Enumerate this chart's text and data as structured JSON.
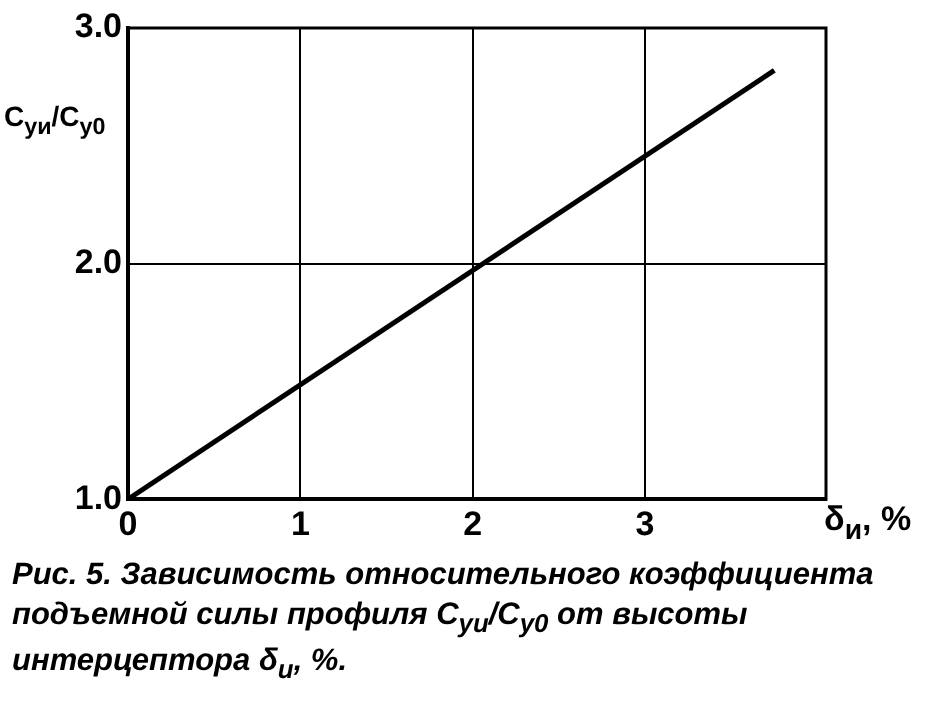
{
  "chart_data": {
    "type": "line",
    "ylabel": "C$_{yи}$/C$_{y0}$",
    "xlabel": "δ$_{и}$, %",
    "x": [
      0,
      3.75
    ],
    "series": [
      {
        "color": "#000000",
        "values": [
          1.0,
          2.82
        ]
      }
    ],
    "xlim": [
      0,
      4.05
    ],
    "xticks": [
      0,
      1,
      2,
      3
    ],
    "ylim": [
      1,
      3
    ],
    "yticks": [
      {
        "value": 1,
        "label": "1.0"
      },
      {
        "value": 2,
        "label": "2.0"
      },
      {
        "value": 3,
        "label": "3.0"
      }
    ],
    "grid": true,
    "legend": false,
    "marker": "none",
    "line_style": "solid",
    "annotations": [
      "Рис. 5. Зависимость относительного коэффициента подъемной силы профиля C$_{yи}$/C$_{y0}$ от высоты интерцептора δ$_{и}$, %."
    ]
  }
}
